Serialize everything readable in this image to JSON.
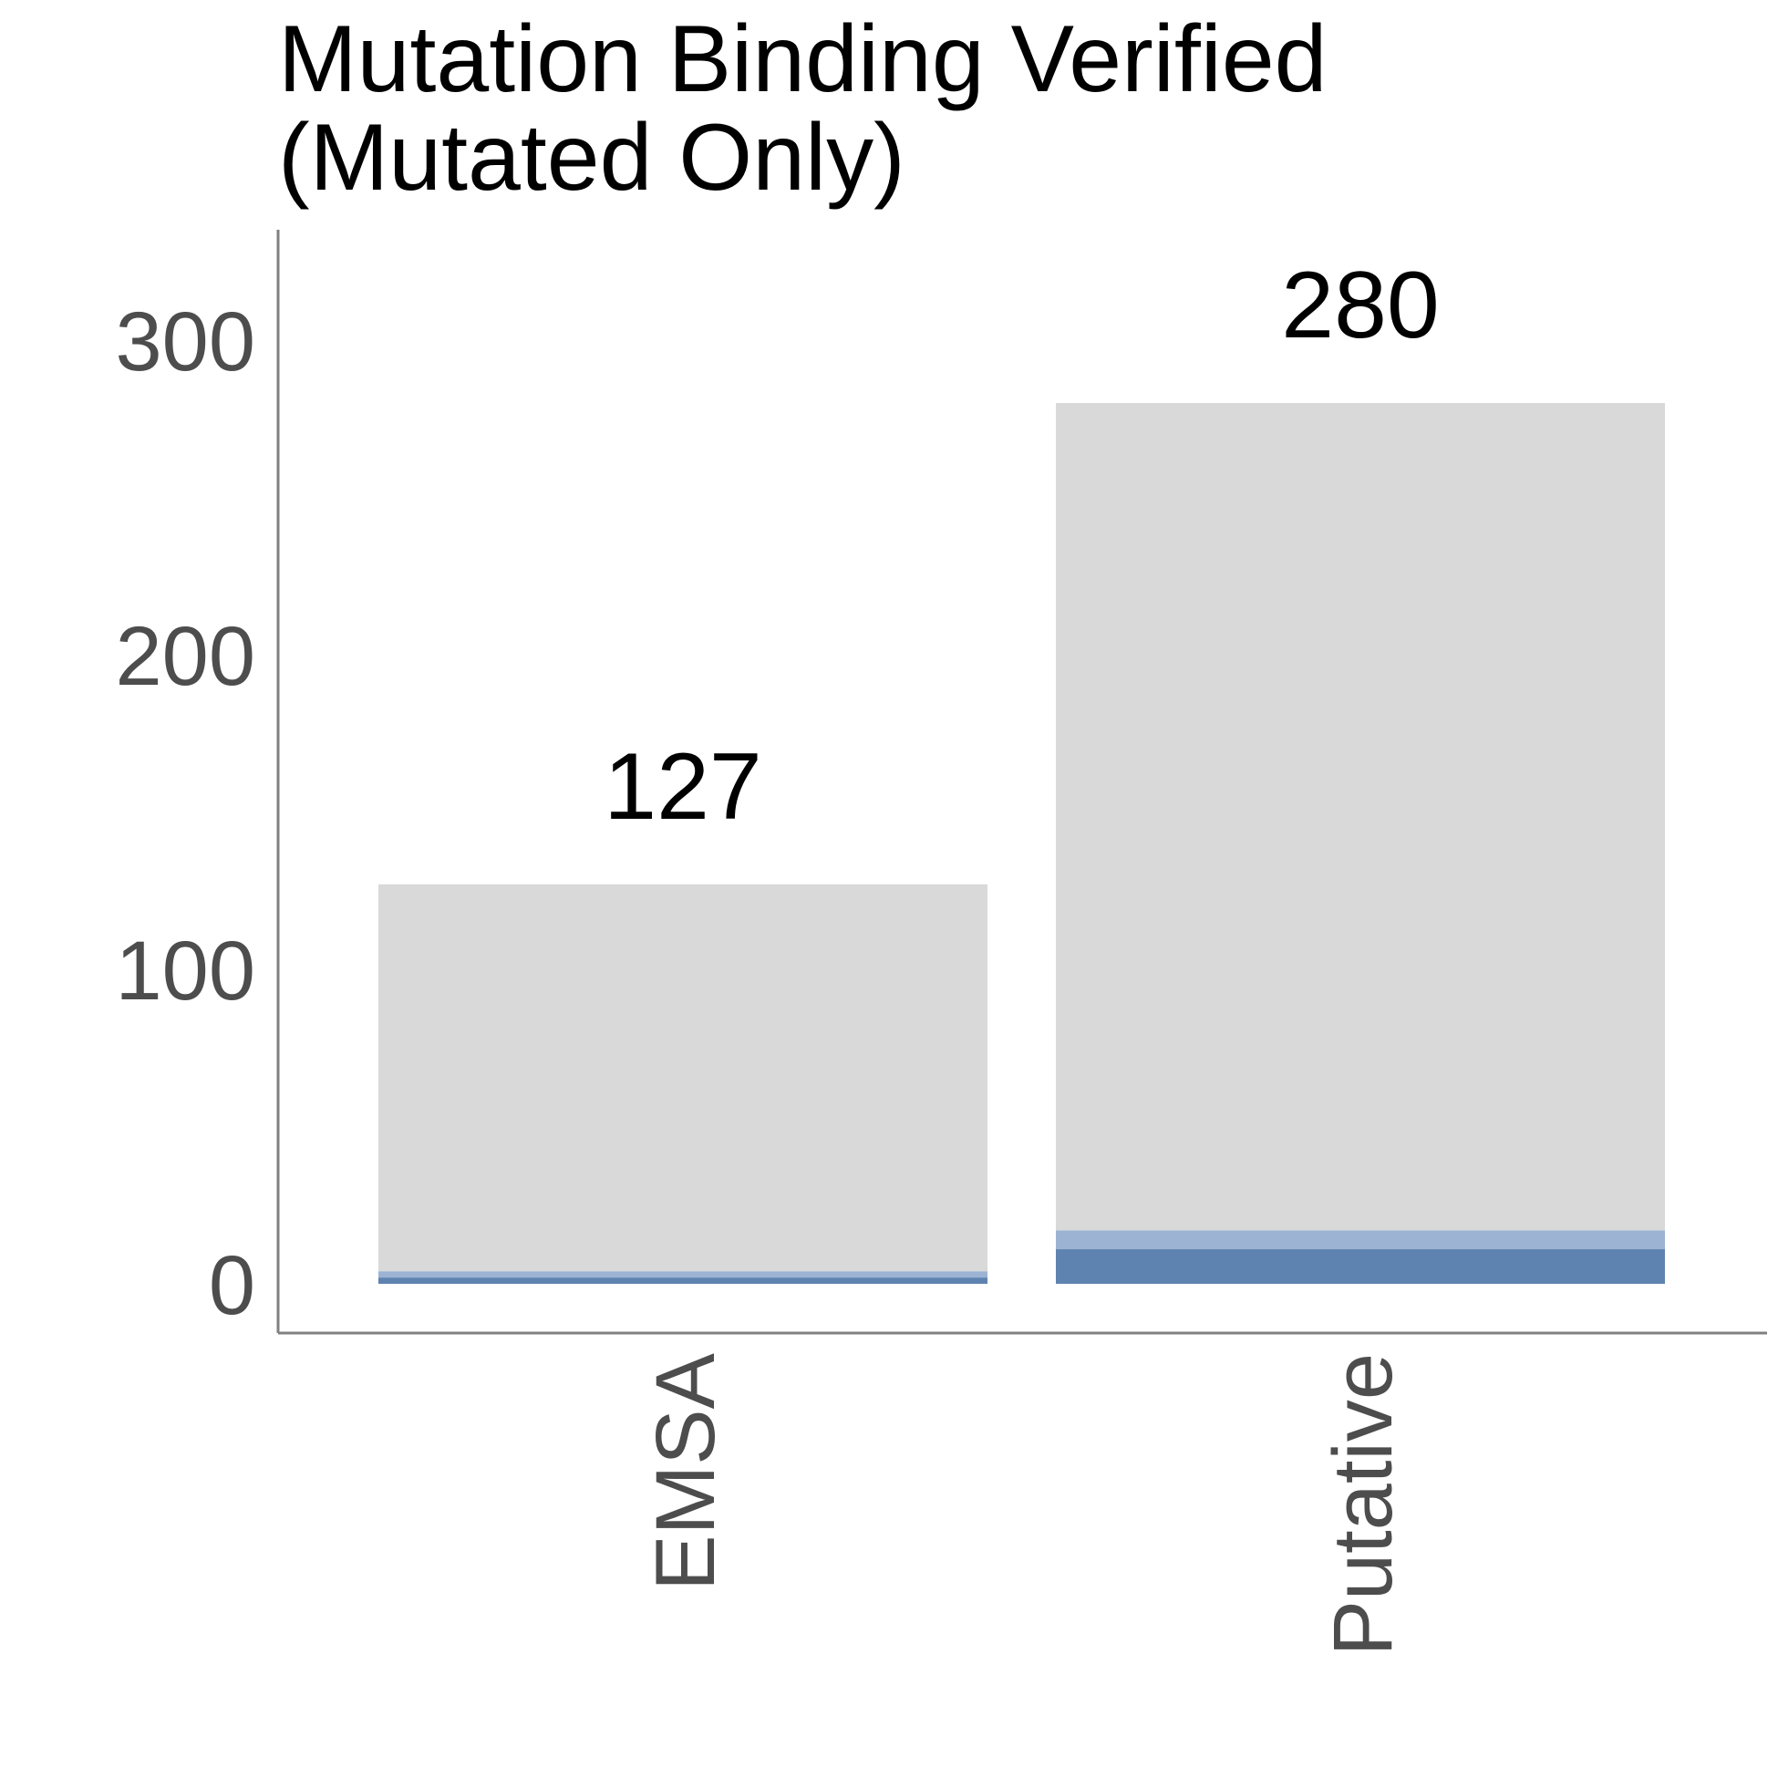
{
  "chart_data": {
    "type": "bar",
    "stacked": true,
    "title": [
      "Mutation Binding Verified",
      "(Mutated Only)"
    ],
    "xlabel": "",
    "ylabel": "",
    "categories": [
      "EMSA",
      "Putative"
    ],
    "totals": [
      127,
      280
    ],
    "series": [
      {
        "values": [
          2,
          11
        ],
        "color": "#5f83b1"
      },
      {
        "values": [
          2,
          6
        ],
        "color": "#9cb3d3"
      },
      {
        "values": [
          123,
          263
        ],
        "color": "#d9d9d9"
      }
    ],
    "ylim": [
      0,
      335
    ],
    "yticks": [
      0,
      100,
      200,
      300
    ],
    "grid": false,
    "legend": "none"
  }
}
